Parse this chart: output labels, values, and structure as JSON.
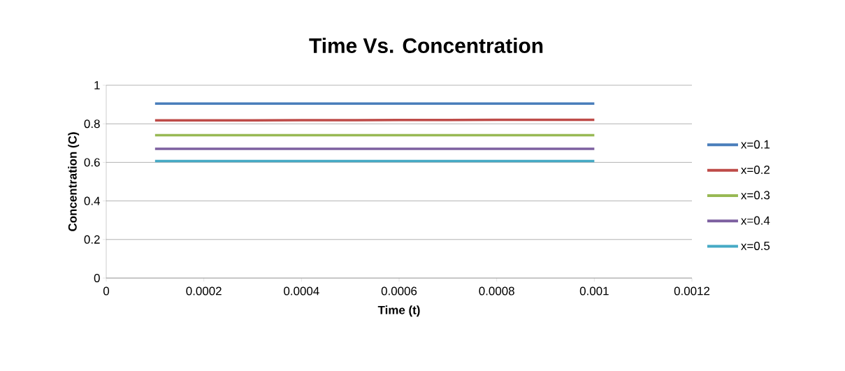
{
  "chart_data": {
    "type": "line",
    "title": "Time  Vs. Concentration",
    "xlabel": "Time (t)",
    "ylabel": "Concentration (C)",
    "x": [
      0.0001,
      0.0002,
      0.0003,
      0.0004,
      0.0005,
      0.0006,
      0.0007,
      0.0008,
      0.0009,
      0.001
    ],
    "series": [
      {
        "name": "x=0.1",
        "color": "#4a7ebb",
        "values": [
          0.905,
          0.905,
          0.905,
          0.905,
          0.905,
          0.905,
          0.905,
          0.905,
          0.905,
          0.905
        ]
      },
      {
        "name": "x=0.2",
        "color": "#be4b48",
        "values": [
          0.818,
          0.818,
          0.818,
          0.819,
          0.819,
          0.82,
          0.82,
          0.821,
          0.821,
          0.821
        ]
      },
      {
        "name": "x=0.3",
        "color": "#98b954",
        "values": [
          0.741,
          0.741,
          0.741,
          0.741,
          0.741,
          0.741,
          0.741,
          0.741,
          0.741,
          0.741
        ]
      },
      {
        "name": "x=0.4",
        "color": "#7d60a0",
        "values": [
          0.67,
          0.67,
          0.67,
          0.67,
          0.67,
          0.67,
          0.67,
          0.67,
          0.67,
          0.67
        ]
      },
      {
        "name": "x=0.5",
        "color": "#46aac5",
        "values": [
          0.607,
          0.607,
          0.607,
          0.607,
          0.607,
          0.607,
          0.607,
          0.607,
          0.607,
          0.607
        ]
      }
    ],
    "xlim": [
      0,
      0.0012
    ],
    "xticks": [
      0,
      0.0002,
      0.0004,
      0.0006,
      0.0008,
      0.001,
      0.0012
    ],
    "ylim": [
      0,
      1
    ],
    "yticks": [
      0,
      0.2,
      0.4,
      0.6,
      0.8,
      1
    ],
    "grid": "y",
    "legend": "right",
    "marker": "none",
    "line_style": "solid"
  }
}
